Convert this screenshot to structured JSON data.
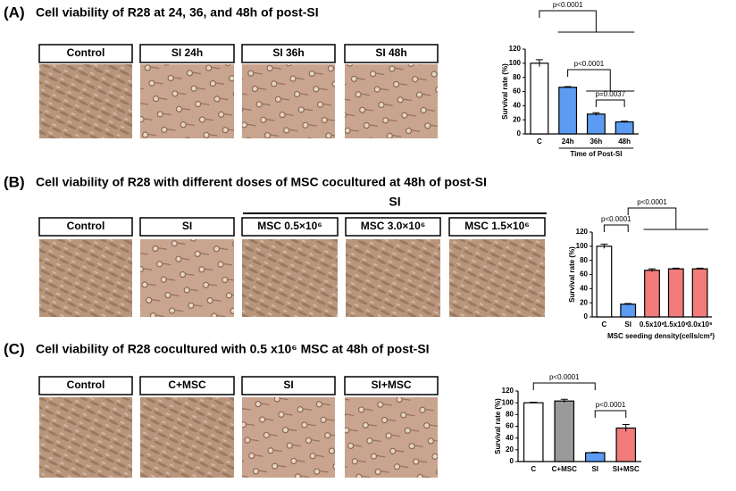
{
  "panels": [
    {
      "label": "(A)",
      "title": "Cell viability of R28 at 24, 36, and 48h of post-SI",
      "image_labels": [
        "Control",
        "SI 24h",
        "SI 36h",
        "SI 48h"
      ]
    },
    {
      "label": "(B)",
      "title": "Cell viability of R28 with different doses of MSC cocultured at 48h of post-SI",
      "group_label": "SI",
      "image_labels": [
        "Control",
        "SI",
        "MSC 0.5×10⁶",
        "MSC 3.0×10⁶",
        "MSC 1.5×10⁶"
      ]
    },
    {
      "label": "(C)",
      "title": "Cell viability of R28 cocultured with 0.5 x10⁶ MSC at 48h of post-SI",
      "image_labels": [
        "Control",
        "C+MSC",
        "SI",
        "SI+MSC"
      ]
    }
  ],
  "chart_data": [
    {
      "type": "bar",
      "ylabel": "Survival rate (%)",
      "xlabel": "Time of Post-SI",
      "categories": [
        "C",
        "24h",
        "36h",
        "48h"
      ],
      "values": [
        100,
        66,
        28,
        17
      ],
      "errors": [
        5,
        1,
        2,
        1
      ],
      "colors": [
        "#ffffff",
        "#5b9cf2",
        "#5b9cf2",
        "#5b9cf2"
      ],
      "ylim": [
        0,
        120
      ],
      "yticks": [
        0,
        20,
        40,
        60,
        80,
        100,
        120
      ],
      "annotations": [
        "p<0.0001",
        "p<0.0001",
        "p=0.0037"
      ]
    },
    {
      "type": "bar",
      "ylabel": "Survival rate (%)",
      "xlabel": "MSC seeding density(cells/cm²)",
      "categories": [
        "C",
        "SI",
        "0.5x10⁶",
        "1.5x10⁶",
        "3.0x10⁶"
      ],
      "values": [
        100,
        18,
        66,
        68,
        68
      ],
      "errors": [
        3,
        1,
        2,
        1,
        1
      ],
      "colors": [
        "#ffffff",
        "#5b9cf2",
        "#f27b7b",
        "#f27b7b",
        "#f27b7b"
      ],
      "ylim": [
        0,
        120
      ],
      "yticks": [
        0,
        20,
        40,
        60,
        80,
        100,
        120
      ],
      "annotations": [
        "p<0.0001",
        "p<0.0001"
      ]
    },
    {
      "type": "bar",
      "ylabel": "Survival rate (%)",
      "categories": [
        "C",
        "C+MSC",
        "SI",
        "SI+MSC"
      ],
      "values": [
        100,
        103,
        15,
        57
      ],
      "errors": [
        1,
        3,
        1,
        6
      ],
      "colors": [
        "#ffffff",
        "#9a9a9a",
        "#5b9cf2",
        "#f27b7b"
      ],
      "ylim": [
        0,
        120
      ],
      "yticks": [
        0,
        20,
        40,
        60,
        80,
        100,
        120
      ],
      "annotations": [
        "p<0.0001",
        "p<0.0001"
      ]
    }
  ]
}
